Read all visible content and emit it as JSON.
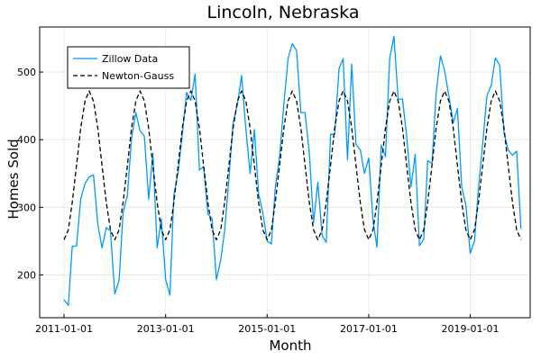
{
  "chart_data": {
    "type": "line",
    "title": "Lincoln, Nebraska",
    "xlabel": "Month",
    "ylabel": "Homes Sold",
    "x_type": "date",
    "xlim": [
      "2011-01-01",
      "2019-12-01"
    ],
    "ylim": [
      150,
      560
    ],
    "xticks": [
      "2011-01-01",
      "2013-01-01",
      "2015-01-01",
      "2017-01-01",
      "2019-01-01"
    ],
    "xtick_labels": [
      "2011-01-01",
      "2013-01-01",
      "2015-01-01",
      "2017-01-01",
      "2019-01-01"
    ],
    "yticks": [
      200,
      300,
      400,
      500
    ],
    "ytick_labels": [
      "200",
      "300",
      "400",
      "500"
    ],
    "grid": true,
    "legend": "top-left",
    "series": [
      {
        "name": "Zillow Data",
        "color": "#009AFA",
        "style": "solid",
        "x_start": "2011-01-01",
        "x_step": "month",
        "values": [
          163,
          155,
          242,
          243,
          312,
          335,
          345,
          348,
          275,
          240,
          270,
          265,
          172,
          192,
          292,
          318,
          402,
          440,
          413,
          405,
          312,
          380,
          240,
          283,
          193,
          170,
          318,
          352,
          408,
          470,
          458,
          497,
          355,
          360,
          290,
          283,
          193,
          222,
          265,
          342,
          425,
          452,
          495,
          415,
          350,
          415,
          320,
          292,
          250,
          246,
          329,
          375,
          452,
          520,
          542,
          532,
          440,
          440,
          380,
          277,
          337,
          258,
          248,
          408,
          408,
          505,
          520,
          370,
          512,
          393,
          385,
          350,
          373,
          280,
          241,
          392,
          375,
          520,
          553,
          460,
          460,
          405,
          330,
          378,
          243,
          253,
          369,
          365,
          468,
          524,
          502,
          464,
          425,
          446,
          330,
          303,
          232,
          250,
          328,
          395,
          465,
          480,
          521,
          510,
          410,
          385,
          377,
          383,
          268
        ]
      },
      {
        "name": "Newton-Gauss",
        "color": "#000000",
        "style": "dashed",
        "x_start": "2011-01-01",
        "x_step": "month",
        "mean": 362,
        "amplitude": 110,
        "period_months": 12,
        "peak_month": 6
      }
    ]
  }
}
